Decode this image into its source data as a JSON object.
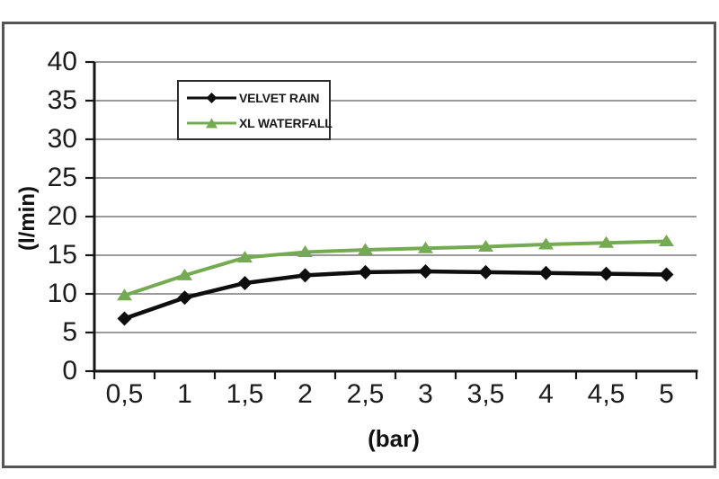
{
  "chart_data": {
    "type": "line",
    "title": "",
    "xlabel": "(bar)",
    "ylabel": "(l/min)",
    "x_tick_labels": [
      "0,5",
      "1",
      "1,5",
      "2",
      "2,5",
      "3",
      "3,5",
      "4",
      "4,5",
      "5"
    ],
    "x_values": [
      0.5,
      1,
      1.5,
      2,
      2.5,
      3,
      3.5,
      4,
      4.5,
      5
    ],
    "y_tick_labels": [
      "0",
      "5",
      "10",
      "15",
      "20",
      "25",
      "30",
      "35",
      "40"
    ],
    "ylim": [
      0,
      40
    ],
    "y_tick_step": 5,
    "grid": true,
    "legend_position": "inside-top-center",
    "series": [
      {
        "name": "VELVET RAIN",
        "marker": "diamond",
        "color": "#0e0e0e",
        "values": [
          6.8,
          9.5,
          11.4,
          12.4,
          12.8,
          12.9,
          12.8,
          12.7,
          12.6,
          12.5
        ]
      },
      {
        "name": "XL WATERFALL",
        "marker": "triangle",
        "color": "#74ab52",
        "values": [
          9.8,
          12.4,
          14.7,
          15.4,
          15.7,
          15.9,
          16.1,
          16.4,
          16.6,
          16.8
        ]
      }
    ]
  },
  "colors": {
    "background": "#ffffff",
    "frame_border": "#555555",
    "gridline": "#8c8c8c",
    "axis": "#161616",
    "tick_label": "#1c1c1c",
    "legend_border": "#2d2d2d"
  }
}
